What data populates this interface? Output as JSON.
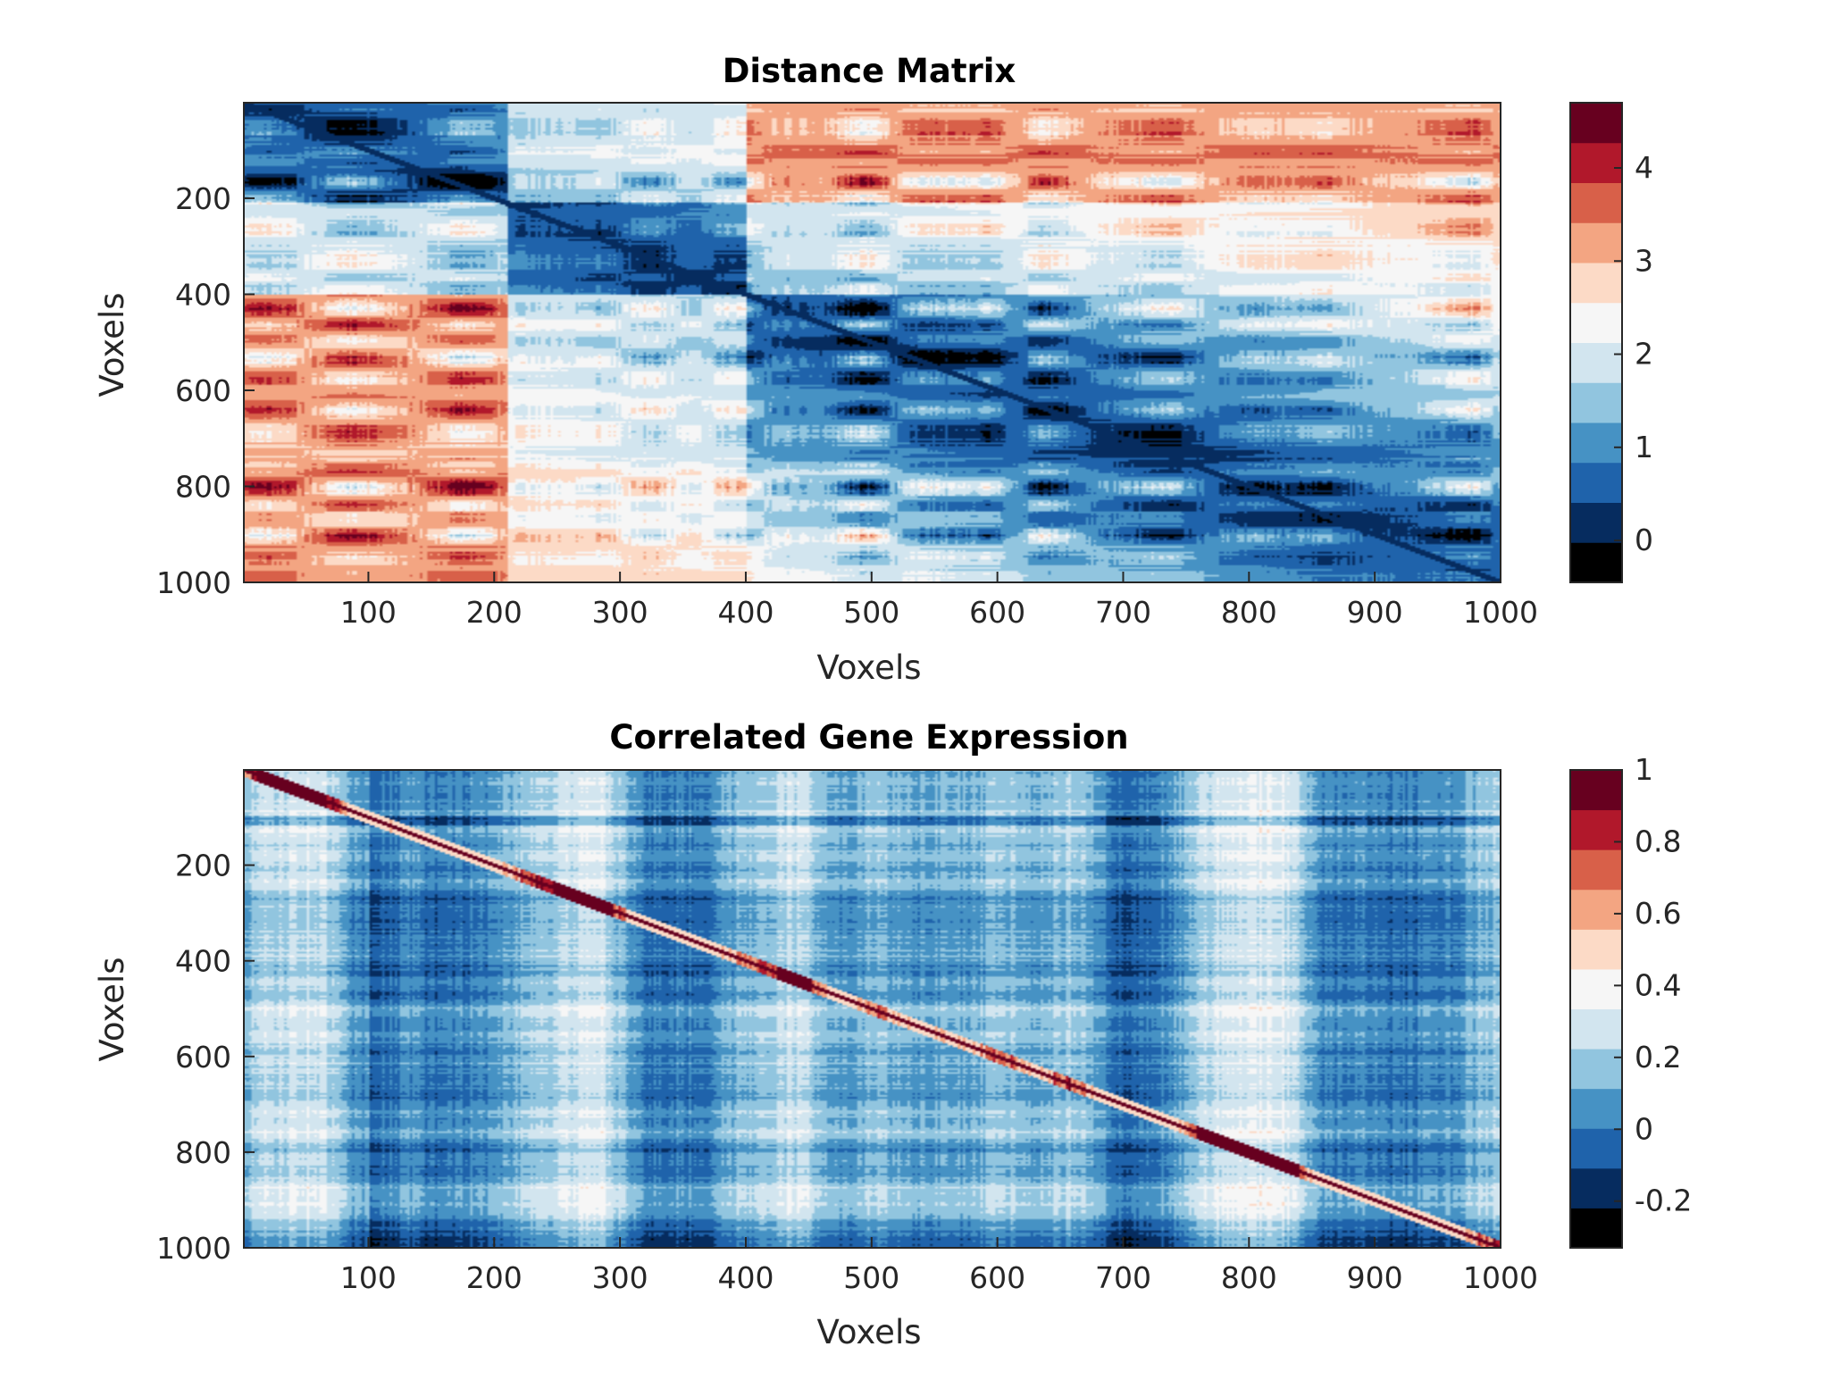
{
  "chart_data": [
    {
      "type": "heatmap",
      "title": "Distance Matrix",
      "xlabel": "Voxels",
      "ylabel": "Voxels",
      "x_range": [
        1,
        1000
      ],
      "y_range": [
        1,
        1000
      ],
      "x_ticks": [
        100,
        200,
        300,
        400,
        500,
        600,
        700,
        800,
        900,
        1000
      ],
      "y_ticks": [
        200,
        400,
        600,
        800,
        1000
      ],
      "y_direction": "reversed",
      "diagonal_value": 0,
      "block_boundaries": [
        0,
        210,
        400,
        1000
      ],
      "colorbar": {
        "range": [
          -0.45,
          4.7
        ],
        "ticks": [
          0,
          1,
          2,
          3,
          4
        ],
        "colors": [
          "#000000",
          "#062c5f",
          "#1f63ab",
          "#4692c4",
          "#91c5df",
          "#d2e5ef",
          "#f6f6f6",
          "#fcdac6",
          "#f3a582",
          "#d86049",
          "#b1182b",
          "#67001f"
        ]
      }
    },
    {
      "type": "heatmap",
      "title": "Correlated Gene Expression",
      "xlabel": "Voxels",
      "ylabel": "Voxels",
      "x_range": [
        1,
        1000
      ],
      "y_range": [
        1,
        1000
      ],
      "x_ticks": [
        100,
        200,
        300,
        400,
        500,
        600,
        700,
        800,
        900,
        1000
      ],
      "y_ticks": [
        200,
        400,
        600,
        800,
        1000
      ],
      "y_direction": "reversed",
      "diagonal_value": 1,
      "colorbar": {
        "range": [
          -0.33,
          1
        ],
        "ticks": [
          -0.2,
          0,
          0.2,
          0.4,
          0.6,
          0.8,
          1
        ],
        "tick_labels": [
          "-0.2",
          "0",
          "0.2",
          "0.4",
          "0.6",
          "0.8",
          "1"
        ],
        "colors": [
          "#000000",
          "#062c5f",
          "#1f63ab",
          "#4692c4",
          "#91c5df",
          "#d2e5ef",
          "#f6f6f6",
          "#fcdac6",
          "#f3a582",
          "#d86049",
          "#b1182b",
          "#67001f"
        ]
      }
    }
  ]
}
